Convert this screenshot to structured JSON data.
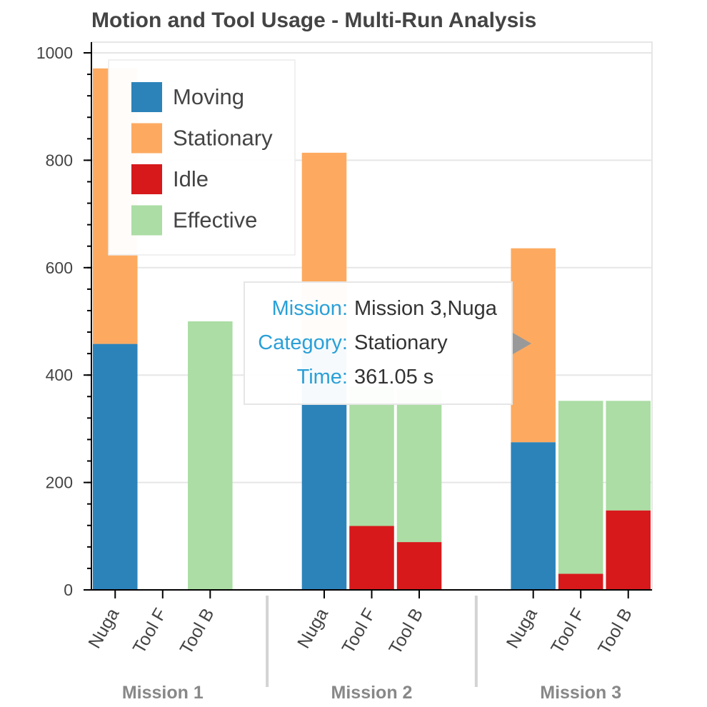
{
  "chart_data": {
    "type": "bar",
    "stacked": true,
    "title": "Motion and Tool Usage - Multi-Run Analysis",
    "xlabel": "",
    "ylabel": "",
    "ylim": [
      0,
      1000
    ],
    "yticks": [
      "0",
      "200",
      "400",
      "600",
      "800",
      "1000"
    ],
    "grid": true,
    "legend_position": "top-left",
    "groups": [
      "Mission 1",
      "Mission 2",
      "Mission 3"
    ],
    "factors": [
      "Nuga",
      "Tool F",
      "Tool B"
    ],
    "series": [
      {
        "name": "Moving",
        "color": "#2c83ba",
        "values": [
          [
            458,
            0,
            0
          ],
          [
            465,
            0,
            0
          ],
          [
            275,
            0,
            0
          ]
        ]
      },
      {
        "name": "Stationary",
        "color": "#fdaa60",
        "values": [
          [
            513,
            0,
            0
          ],
          [
            349,
            0,
            0
          ],
          [
            361.05,
            0,
            0
          ]
        ]
      },
      {
        "name": "Idle",
        "color": "#d7191c",
        "values": [
          [
            0,
            0,
            0
          ],
          [
            0,
            119,
            89
          ],
          [
            0,
            30,
            148
          ]
        ]
      },
      {
        "name": "Effective",
        "color": "#abdda4",
        "values": [
          [
            0,
            0,
            500
          ],
          [
            0,
            260,
            284
          ],
          [
            0,
            322,
            204
          ]
        ]
      }
    ]
  },
  "tooltip": {
    "rows": [
      {
        "key": "Mission:",
        "value": "Mission 3,Nuga"
      },
      {
        "key": "Category:",
        "value": "Stationary"
      },
      {
        "key": "Time:",
        "value": "361.05 s"
      }
    ]
  }
}
